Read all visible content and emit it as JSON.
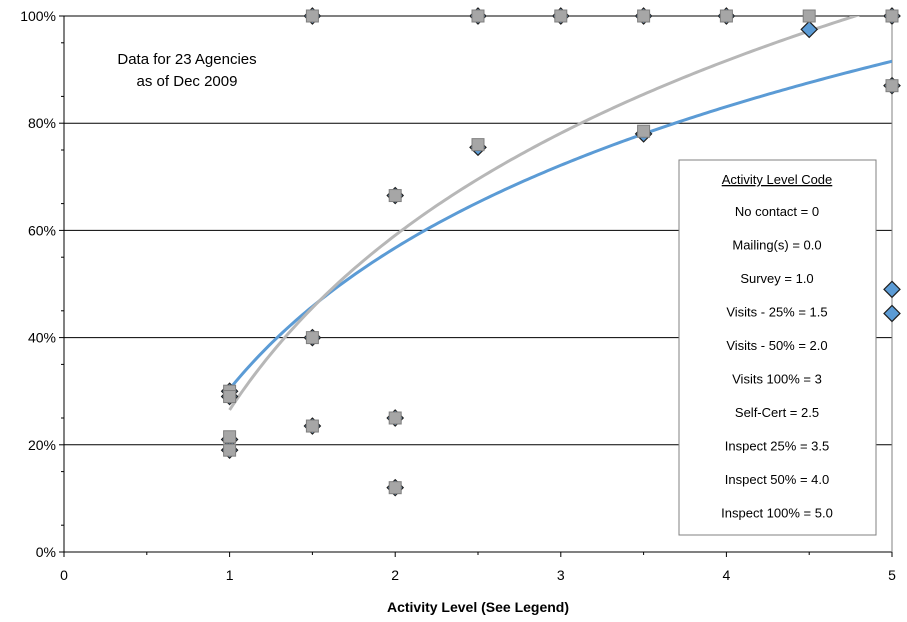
{
  "chart_data": {
    "type": "scatter",
    "title": "",
    "xlabel": "Activity Level (See Legend)",
    "ylabel": "",
    "xlim": [
      0,
      5
    ],
    "ylim": [
      0,
      100
    ],
    "x_ticks": [
      "0",
      "1",
      "2",
      "3",
      "4",
      "5"
    ],
    "y_ticks": [
      "0%",
      "20%",
      "40%",
      "60%",
      "80%",
      "100%"
    ],
    "grid": "horizontal",
    "annotation": [
      "Data for 23 Agencies",
      "as of Dec 2009"
    ],
    "legend": {
      "placement": "right",
      "title": "Activity Level Code",
      "entries": [
        "No contact = 0",
        "Mailing(s) = 0.0",
        "Survey = 1.0",
        "Visits - 25% = 1.5",
        "Visits - 50% = 2.0",
        "Visits 100% = 3",
        "Self-Cert = 2.5",
        "Inspect 25% = 3.5",
        "Inspect 50% = 4.0",
        "Inspect 100% = 5.0"
      ]
    },
    "series": [
      {
        "marker": "diamond",
        "color": "#5B9BD5",
        "points": [
          [
            1,
            30
          ],
          [
            1,
            29
          ],
          [
            1,
            21
          ],
          [
            1,
            19
          ],
          [
            1.5,
            100
          ],
          [
            1.5,
            40
          ],
          [
            1.5,
            23.5
          ],
          [
            2,
            66.5
          ],
          [
            2,
            25
          ],
          [
            2,
            12
          ],
          [
            2.5,
            100
          ],
          [
            2.5,
            75.5
          ],
          [
            3,
            100
          ],
          [
            3.5,
            100
          ],
          [
            3.5,
            78
          ],
          [
            4,
            100
          ],
          [
            4.5,
            97.5
          ],
          [
            5,
            100
          ],
          [
            5,
            87
          ],
          [
            5,
            49
          ],
          [
            5,
            44.5
          ]
        ]
      },
      {
        "marker": "square",
        "color": "#A6A6A6",
        "points": [
          [
            1,
            30
          ],
          [
            1,
            29
          ],
          [
            1,
            21.5
          ],
          [
            1,
            19
          ],
          [
            1.5,
            100
          ],
          [
            1.5,
            40
          ],
          [
            1.5,
            23.5
          ],
          [
            2,
            66.5
          ],
          [
            2,
            25
          ],
          [
            2,
            12
          ],
          [
            2.5,
            100
          ],
          [
            2.5,
            76
          ],
          [
            3,
            100
          ],
          [
            3.5,
            100
          ],
          [
            3.5,
            78.5
          ],
          [
            4,
            100
          ],
          [
            4.5,
            100
          ],
          [
            5,
            100
          ],
          [
            5,
            87
          ]
        ]
      }
    ],
    "trendlines": [
      {
        "type": "logarithmic",
        "color": "#5B9BD5",
        "a": 30.4,
        "b": 38.0
      },
      {
        "type": "logarithmic",
        "color": "#B7B7B7",
        "a": 26.5,
        "b": 47.0
      }
    ]
  }
}
